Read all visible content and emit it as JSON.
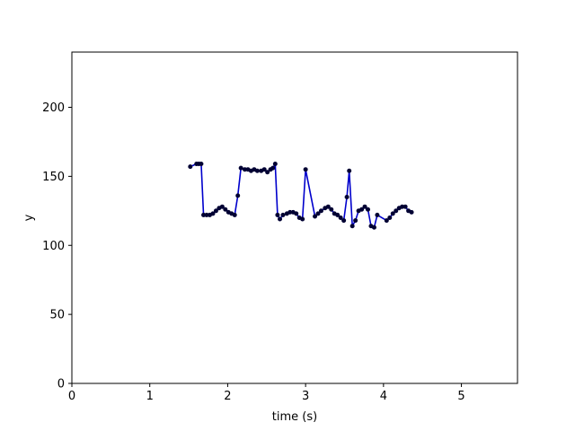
{
  "chart_data": {
    "type": "line",
    "title": "",
    "xlabel": "time (s)",
    "ylabel": "y",
    "xlim": [
      0,
      5.72
    ],
    "ylim": [
      0,
      240
    ],
    "xticks": [
      0,
      1,
      2,
      3,
      4,
      5
    ],
    "yticks": [
      0,
      50,
      100,
      150,
      200
    ],
    "xtick_labels": [
      "0",
      "1",
      "2",
      "3",
      "4",
      "5"
    ],
    "ytick_labels": [
      "0",
      "50",
      "100",
      "150",
      "200"
    ],
    "grid": false,
    "legend": "none",
    "series": [
      {
        "line_color": "#0000cc",
        "marker_color": "#000033",
        "x": [
          1.52,
          1.6,
          1.63,
          1.66,
          1.69,
          1.73,
          1.77,
          1.81,
          1.85,
          1.89,
          1.93,
          1.97,
          2.01,
          2.05,
          2.09,
          2.13,
          2.17,
          2.22,
          2.26,
          2.3,
          2.34,
          2.38,
          2.43,
          2.47,
          2.51,
          2.55,
          2.58,
          2.61,
          2.64,
          2.67,
          2.71,
          2.76,
          2.8,
          2.84,
          2.88,
          2.92,
          2.96,
          3.0,
          3.12,
          3.16,
          3.2,
          3.25,
          3.29,
          3.33,
          3.37,
          3.41,
          3.45,
          3.49,
          3.53,
          3.56,
          3.6,
          3.64,
          3.68,
          3.72,
          3.76,
          3.8,
          3.84,
          3.88,
          3.92,
          4.04,
          4.08,
          4.12,
          4.16,
          4.2,
          4.24,
          4.28,
          4.32,
          4.36
        ],
        "y": [
          157,
          159,
          159,
          159,
          122,
          122,
          122,
          123,
          125,
          127,
          128,
          126,
          124,
          123,
          122,
          136,
          156,
          155,
          155,
          154,
          155,
          154,
          154,
          155,
          153,
          155,
          156,
          159,
          122,
          119,
          122,
          123,
          124,
          124,
          123,
          120,
          119,
          155,
          121,
          123,
          125,
          127,
          128,
          126,
          123,
          122,
          120,
          118,
          135,
          154,
          114,
          118,
          125,
          126,
          128,
          126,
          114,
          113,
          122,
          118,
          120,
          123,
          125,
          127,
          128,
          128,
          125,
          124
        ]
      }
    ]
  }
}
